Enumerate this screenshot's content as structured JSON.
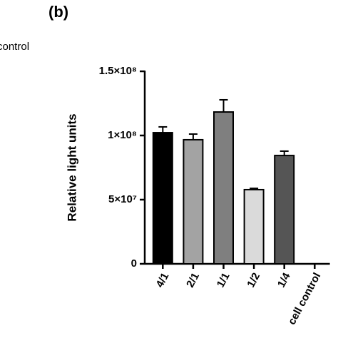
{
  "chart_data": {
    "type": "bar",
    "panel_label": "(b)",
    "annotation": "control",
    "ylabel": "Relative light units",
    "categories": [
      "4/1",
      "2/1",
      "1/1",
      "1/2",
      "1/4",
      "cell control"
    ],
    "values": [
      102200000,
      96700000,
      118300000,
      57800000,
      84400000,
      0
    ],
    "errors": [
      4500000,
      4400000,
      9500000,
      1000000,
      3400000,
      0
    ],
    "colors": [
      "#000000",
      "#a3a3a3",
      "#7f7f7f",
      "#dadada",
      "#555555",
      "#ffffff"
    ],
    "ylim": [
      0,
      150000000
    ],
    "yticks": [
      0,
      {
        "value": 50000000,
        "label": "5×10⁷"
      },
      {
        "value": 100000000,
        "label": "1×10⁸"
      },
      {
        "value": 150000000,
        "label": "1.5×10⁸"
      }
    ]
  }
}
